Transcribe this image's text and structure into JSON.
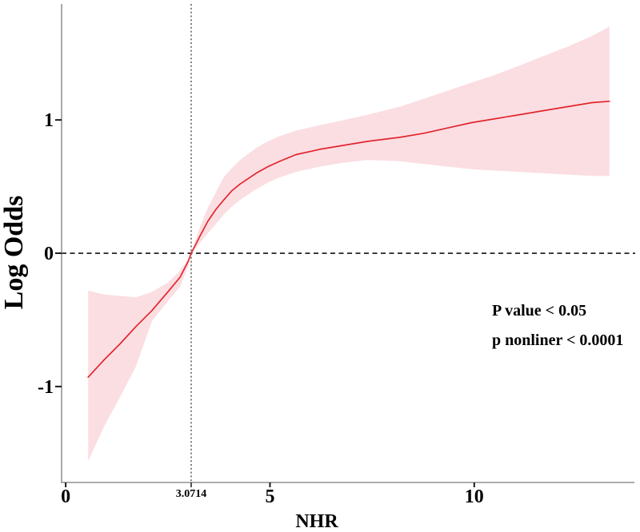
{
  "chart_data": {
    "type": "line",
    "title": "",
    "xlabel": "NHR",
    "ylabel": "Log Odds",
    "xlim": [
      -0.1,
      13.92
    ],
    "ylim": [
      -1.72,
      1.87
    ],
    "grid": false,
    "legend": "none",
    "x_ticks": [
      {
        "value": 0,
        "label": "0",
        "minor": false
      },
      {
        "value": 3.0714,
        "label": "3.0714",
        "minor": true
      },
      {
        "value": 5,
        "label": "5",
        "minor": false
      },
      {
        "value": 10,
        "label": "10",
        "minor": false
      }
    ],
    "y_ticks": [
      {
        "value": -1,
        "label": "-1"
      },
      {
        "value": 0,
        "label": "0"
      },
      {
        "value": 1,
        "label": "1"
      }
    ],
    "reference_lines": {
      "horizontal_y": 0,
      "vertical_x": 3.0714,
      "vertical_label": "3.0714"
    },
    "annotations": [
      "P value < 0.05",
      "p nonliner < 0.0001"
    ],
    "colors": {
      "line": "#e2262e",
      "band": "#fbdee2",
      "ref_horizontal": "#111111",
      "ref_vertical": "#7f7f7f",
      "axis": "#7b7b7b",
      "tick": "#1a1a1a",
      "text": "#000000",
      "background": "#ffffff"
    },
    "series": {
      "x": [
        0.55,
        0.94,
        1.33,
        1.72,
        2.11,
        2.5,
        2.8,
        3.0,
        3.0714,
        3.29,
        3.48,
        3.68,
        3.87,
        4.07,
        4.27,
        4.66,
        4.95,
        5.24,
        5.64,
        6.22,
        6.81,
        7.4,
        8.18,
        8.77,
        9.35,
        9.94,
        10.53,
        11.12,
        11.7,
        12.29,
        12.88,
        13.31
      ],
      "log_odds": [
        -0.93,
        -0.8,
        -0.68,
        -0.55,
        -0.43,
        -0.29,
        -0.18,
        -0.06,
        0.0,
        0.13,
        0.24,
        0.33,
        0.4,
        0.47,
        0.52,
        0.6,
        0.65,
        0.69,
        0.74,
        0.78,
        0.81,
        0.84,
        0.87,
        0.9,
        0.94,
        0.98,
        1.01,
        1.04,
        1.07,
        1.1,
        1.13,
        1.14
      ],
      "ci_lower": [
        -1.56,
        -1.3,
        -1.08,
        -0.85,
        -0.51,
        -0.36,
        -0.25,
        -0.1,
        0.0,
        0.08,
        0.15,
        0.22,
        0.29,
        0.35,
        0.4,
        0.48,
        0.53,
        0.57,
        0.61,
        0.65,
        0.68,
        0.7,
        0.69,
        0.67,
        0.65,
        0.63,
        0.62,
        0.61,
        0.6,
        0.59,
        0.58,
        0.58
      ],
      "ci_upper": [
        -0.28,
        -0.31,
        -0.32,
        -0.33,
        -0.29,
        -0.22,
        -0.13,
        -0.04,
        0.0,
        0.2,
        0.34,
        0.46,
        0.57,
        0.64,
        0.7,
        0.79,
        0.84,
        0.88,
        0.92,
        0.96,
        1.0,
        1.04,
        1.1,
        1.16,
        1.22,
        1.28,
        1.34,
        1.41,
        1.48,
        1.55,
        1.63,
        1.7
      ]
    }
  }
}
